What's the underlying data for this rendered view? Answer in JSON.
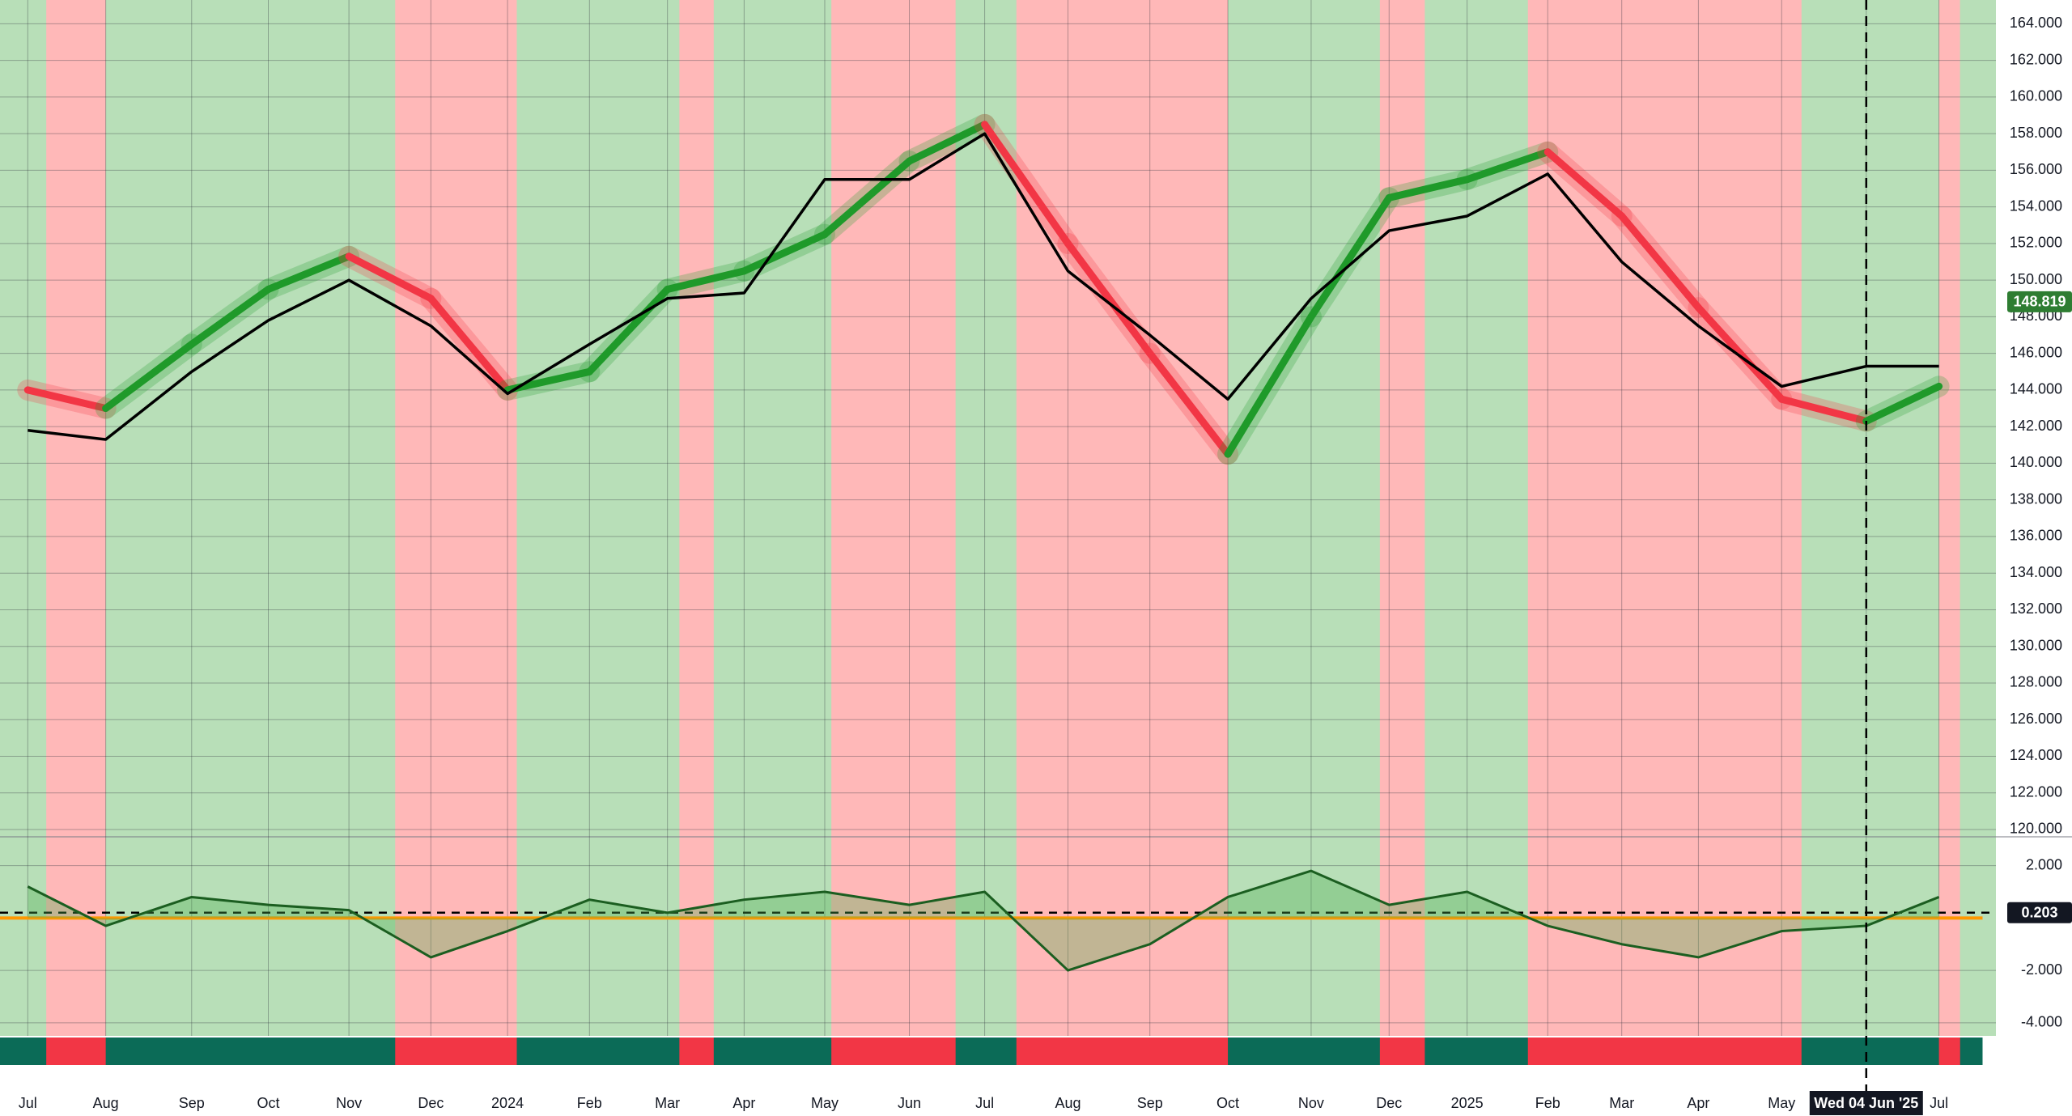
{
  "chart_data": [
    {
      "type": "line",
      "categories": [
        "Jul",
        "Aug",
        "Sep",
        "Oct",
        "Nov",
        "Dec",
        "2024",
        "Feb",
        "Mar",
        "Apr",
        "May",
        "Jun",
        "Jul",
        "Aug",
        "Sep",
        "Oct",
        "Nov",
        "Dec",
        "2025",
        "Feb",
        "Mar",
        "Apr",
        "May",
        "Wed 04 Jun '25",
        "Jul"
      ],
      "series": [
        {
          "color": "#1f9a2a",
          "values": [
            144,
            143,
            146.5,
            149.5,
            151.3,
            149,
            144,
            145,
            149.5,
            150.5,
            152.5,
            156.5,
            158.5,
            152,
            146,
            140.5,
            148,
            154.5,
            155.5,
            157,
            153.5,
            148.5,
            143.5,
            142.3,
            144.2
          ]
        },
        {
          "color": "#000000",
          "values": [
            141.8,
            141.3,
            145,
            147.8,
            150,
            147.5,
            143.8,
            146.5,
            149,
            149.3,
            155.5,
            155.5,
            158,
            150.5,
            147,
            143.5,
            149,
            152.7,
            153.5,
            155.8,
            151,
            147.5,
            144.2,
            145.3,
            145.3
          ]
        }
      ],
      "ylim": [
        119.6,
        165.3
      ],
      "yticks": [
        {
          "value": 120,
          "label": "120.000"
        },
        {
          "value": 122,
          "label": "122.000"
        },
        {
          "value": 124,
          "label": "124.000"
        },
        {
          "value": 126,
          "label": "126.000"
        },
        {
          "value": 128,
          "label": "128.000"
        },
        {
          "value": 130,
          "label": "130.000"
        },
        {
          "value": 132,
          "label": "132.000"
        },
        {
          "value": 134,
          "label": "134.000"
        },
        {
          "value": 136,
          "label": "136.000"
        },
        {
          "value": 138,
          "label": "138.000"
        },
        {
          "value": 140,
          "label": "140.000"
        },
        {
          "value": 142,
          "label": "142.000"
        },
        {
          "value": 144,
          "label": "144.000"
        },
        {
          "value": 146,
          "label": "146.000"
        },
        {
          "value": 148,
          "label": "148.000"
        },
        {
          "value": 150,
          "label": "150.000"
        },
        {
          "value": 152,
          "label": "152.000"
        },
        {
          "value": 154,
          "label": "154.000"
        },
        {
          "value": 156,
          "label": "156.000"
        },
        {
          "value": 158,
          "label": "158.000"
        },
        {
          "value": 160,
          "label": "160.000"
        },
        {
          "value": 162,
          "label": "162.000"
        },
        {
          "value": 164,
          "label": "164.000"
        }
      ],
      "last_value": 148.819,
      "grid": true
    },
    {
      "type": "line",
      "series": [
        {
          "color": "#1b5e20",
          "values": [
            1.2,
            -0.3,
            0.8,
            0.5,
            0.3,
            -1.5,
            -0.5,
            0.7,
            0.2,
            0.7,
            1.0,
            0.5,
            1.0,
            -2.0,
            -1.0,
            0.8,
            1.8,
            0.5,
            1.0,
            -0.3,
            -1.0,
            -1.5,
            -0.5,
            -0.3,
            0.8
          ]
        }
      ],
      "ylim": [
        -4.5,
        3.1
      ],
      "yticks": [
        {
          "value": 2,
          "label": "2.000"
        },
        {
          "value": -2,
          "label": "-2.000"
        },
        {
          "value": -4,
          "label": "-4.000"
        }
      ],
      "last_value": 0.203,
      "grid": true
    }
  ]
}
